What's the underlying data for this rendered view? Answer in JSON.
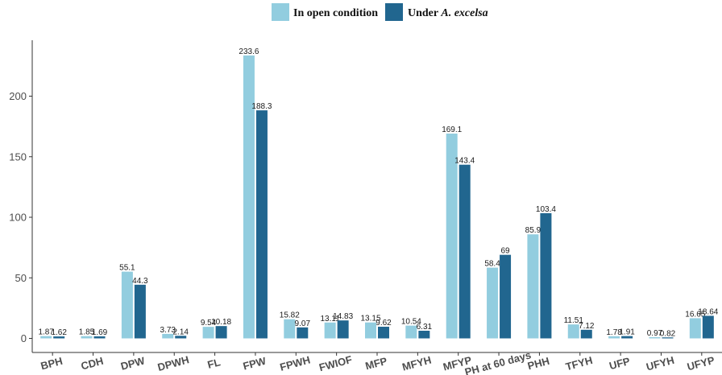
{
  "chart_data": {
    "type": "bar",
    "categories": [
      "BPH",
      "CDH",
      "DPW",
      "DPWH",
      "FL",
      "FPW",
      "FPWH",
      "FWIOF",
      "MFP",
      "MFYH",
      "MFYP",
      "PH at 60 days",
      "PHH",
      "TFYH",
      "UFP",
      "UFYH",
      "UFYP"
    ],
    "series": [
      {
        "name": "In open condition",
        "color": "#92cddf",
        "values": [
          1.87,
          1.85,
          55.1,
          3.73,
          9.54,
          233.6,
          15.82,
          13.11,
          13.15,
          10.54,
          169.1,
          58.4,
          85.9,
          11.51,
          1.78,
          0.97,
          16.65
        ],
        "labels": [
          "1.87",
          "1.85",
          "55.1",
          "3.73",
          "9.54",
          "233.6",
          "15.82",
          "13.11",
          "13.15",
          "10.54",
          "169.1",
          "58.4",
          "85.9",
          "11.51",
          "1.78",
          "0.97",
          "16.65"
        ]
      },
      {
        "name": "Under A. excelsa",
        "color": "#21668f",
        "values": [
          1.62,
          1.69,
          44.3,
          2.14,
          10.18,
          188.3,
          9.07,
          14.83,
          9.62,
          6.31,
          143.4,
          69,
          103.4,
          7.12,
          1.91,
          0.82,
          18.64
        ],
        "labels": [
          "1.62",
          "1.69",
          "44.3",
          "2.14",
          "10.18",
          "188.3",
          "9.07",
          "14.83",
          "9.62",
          "6.31",
          "143.4",
          "69",
          "103.4",
          "7.12",
          "1.91",
          "0.82",
          "18.64"
        ]
      }
    ],
    "legend": {
      "position": "top",
      "open_label": "In open condition",
      "under_prefix": "Under ",
      "under_italic": "A. excelsa"
    },
    "yticks": [
      "0",
      "50",
      "100",
      "150",
      "200"
    ],
    "ytick_values": [
      0,
      50,
      100,
      150,
      200
    ],
    "ylim": [
      -6,
      246
    ],
    "grid": false
  }
}
